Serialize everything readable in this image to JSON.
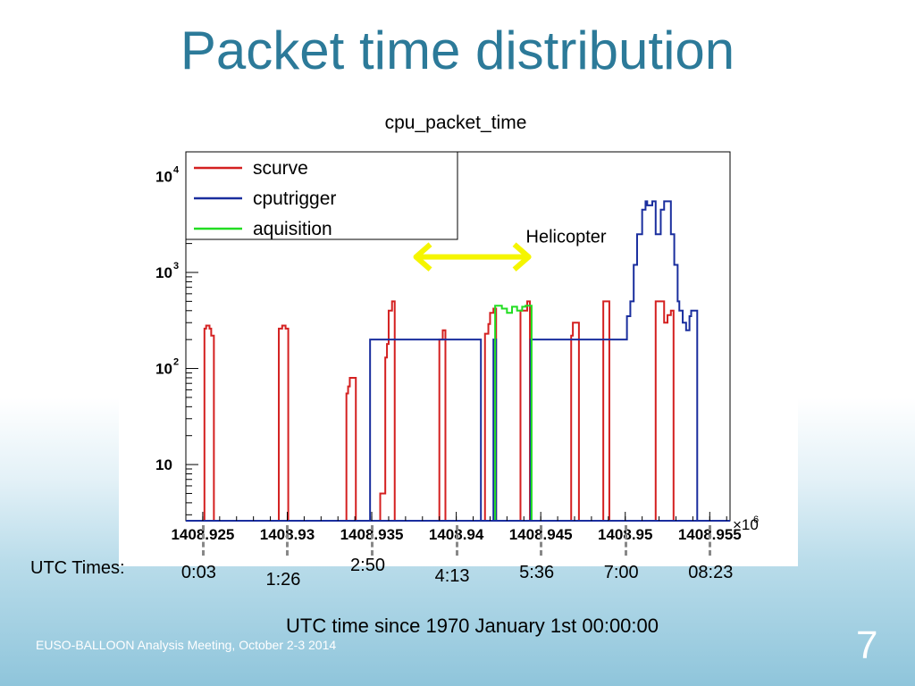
{
  "slide": {
    "title": "Packet time distribution",
    "utc_label": "UTC Times:",
    "utc_times": [
      "0:03",
      "1:26",
      "2:50",
      "4:13",
      "5:36",
      "7:00",
      "08:23"
    ],
    "x_caption": "UTC time since 1970 January 1st 00:00:00",
    "footer": "EUSO-BALLOON Analysis Meeting, October 2-3 2014",
    "page_number": "7",
    "annotation": "Helicopter"
  },
  "colors": {
    "title": "#2c7a99",
    "scurve": "#d42020",
    "cputrigger": "#1a2e9e",
    "aquisition": "#22dd22",
    "arrow": "#f5f500"
  },
  "chart_data": {
    "type": "line",
    "title": "cpu_packet_time",
    "xlabel": "",
    "ylabel": "",
    "x_multiplier_label": "×10",
    "x_multiplier_exponent": "6",
    "xlim": [
      1408.924,
      1408.9562
    ],
    "ylog": true,
    "ylim": [
      2.6,
      18000
    ],
    "x_ticks": [
      {
        "value": 1408.925,
        "label": "1408.925"
      },
      {
        "value": 1408.93,
        "label": "1408.93"
      },
      {
        "value": 1408.935,
        "label": "1408.935"
      },
      {
        "value": 1408.94,
        "label": "1408.94"
      },
      {
        "value": 1408.945,
        "label": "1408.945"
      },
      {
        "value": 1408.95,
        "label": "1408.95"
      },
      {
        "value": 1408.955,
        "label": "1408.955"
      }
    ],
    "y_ticks": [
      {
        "value": 10,
        "base": "10",
        "exp": ""
      },
      {
        "value": 100,
        "base": "10",
        "exp": "2"
      },
      {
        "value": 1000,
        "base": "10",
        "exp": "3"
      },
      {
        "value": 10000,
        "base": "10",
        "exp": "4"
      }
    ],
    "legend_position": "top-left",
    "series": [
      {
        "name": "scurve",
        "color": "#d42020",
        "points": [
          [
            1408.9251,
            260
          ],
          [
            1408.9252,
            280
          ],
          [
            1408.9254,
            260
          ],
          [
            1408.9255,
            220
          ],
          [
            1408.9295,
            260
          ],
          [
            1408.9297,
            280
          ],
          [
            1408.9299,
            260
          ],
          [
            1408.9335,
            55
          ],
          [
            1408.9336,
            65
          ],
          [
            1408.9337,
            80
          ],
          [
            1408.9339,
            80
          ],
          [
            1408.9355,
            5
          ],
          [
            1408.9358,
            130
          ],
          [
            1408.9359,
            180
          ],
          [
            1408.936,
            400
          ],
          [
            1408.9362,
            500
          ],
          [
            1408.939,
            200
          ],
          [
            1408.9392,
            250
          ],
          [
            1408.9417,
            230
          ],
          [
            1408.9419,
            290
          ],
          [
            1408.942,
            380
          ],
          [
            1408.9422,
            420
          ],
          [
            1408.9438,
            400
          ],
          [
            1408.9442,
            500
          ],
          [
            1408.9468,
            220
          ],
          [
            1408.9469,
            300
          ],
          [
            1408.9471,
            300
          ],
          [
            1408.9487,
            500
          ],
          [
            1408.9489,
            500
          ],
          [
            1408.9518,
            500
          ],
          [
            1408.952,
            500
          ],
          [
            1408.9523,
            300
          ],
          [
            1408.9525,
            360
          ],
          [
            1408.9527,
            400
          ]
        ]
      },
      {
        "name": "cputrigger",
        "color": "#1a2e9e",
        "points": [
          [
            1408.9349,
            200
          ],
          [
            1408.9356,
            200
          ],
          [
            1408.9362,
            200
          ],
          [
            1408.9369,
            200
          ],
          [
            1408.9373,
            200
          ],
          [
            1408.9379,
            200
          ],
          [
            1408.9382,
            200
          ],
          [
            1408.9387,
            200
          ],
          [
            1408.9393,
            200
          ],
          [
            1408.9399,
            200
          ],
          [
            1408.9404,
            200
          ],
          [
            1408.9409,
            200
          ],
          [
            1408.9413,
            200
          ],
          [
            1408.9422,
            200
          ],
          [
            1408.9444,
            200
          ],
          [
            1408.9451,
            200
          ],
          [
            1408.9454,
            200
          ],
          [
            1408.9461,
            200
          ],
          [
            1408.9464,
            200
          ],
          [
            1408.9471,
            200
          ],
          [
            1408.9475,
            200
          ],
          [
            1408.9481,
            200
          ],
          [
            1408.9485,
            200
          ],
          [
            1408.9492,
            200
          ],
          [
            1408.9495,
            200
          ],
          [
            1408.9501,
            200
          ],
          [
            1408.9501,
            350
          ],
          [
            1408.9503,
            500
          ],
          [
            1408.9505,
            1200
          ],
          [
            1408.9507,
            2500
          ],
          [
            1408.951,
            4500
          ],
          [
            1408.9512,
            5500
          ],
          [
            1408.9513,
            5000
          ],
          [
            1408.9516,
            5500
          ],
          [
            1408.9518,
            2500
          ],
          [
            1408.952,
            2500
          ],
          [
            1408.9521,
            4500
          ],
          [
            1408.9523,
            5500
          ],
          [
            1408.9525,
            5500
          ],
          [
            1408.9527,
            2500
          ],
          [
            1408.9529,
            1200
          ],
          [
            1408.9531,
            500
          ],
          [
            1408.9532,
            400
          ],
          [
            1408.9534,
            300
          ],
          [
            1408.9536,
            250
          ],
          [
            1408.9538,
            350
          ],
          [
            1408.9539,
            400
          ],
          [
            1408.9541,
            400
          ]
        ]
      },
      {
        "name": "aquisition",
        "color": "#22dd22",
        "points": [
          [
            1408.9423,
            450
          ],
          [
            1408.9427,
            420
          ],
          [
            1408.943,
            380
          ],
          [
            1408.9433,
            440
          ],
          [
            1408.9436,
            400
          ],
          [
            1408.9439,
            440
          ],
          [
            1408.9441,
            450
          ],
          [
            1408.9443,
            450
          ]
        ]
      }
    ]
  }
}
